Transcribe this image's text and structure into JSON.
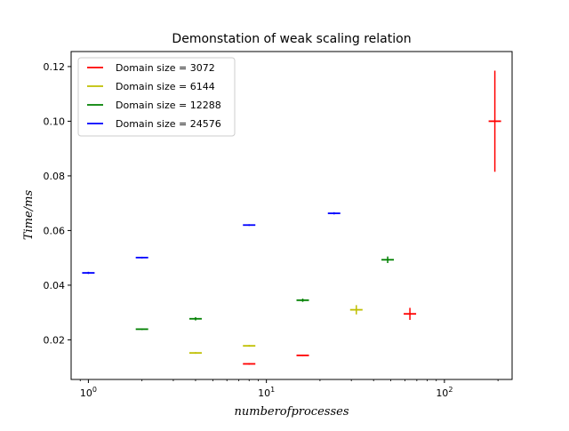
{
  "chart_data": {
    "type": "scatter",
    "title": "Demonstation of weak scaling relation",
    "xlabel": "numberofprocesses",
    "ylabel": "Time/ms",
    "xscale": "log",
    "xlim": [
      0.8,
      240
    ],
    "ylim": [
      0.0055,
      0.1255
    ],
    "x_ticks": [
      {
        "value": 1,
        "base": "10",
        "exp": "0"
      },
      {
        "value": 10,
        "base": "10",
        "exp": "1"
      },
      {
        "value": 100,
        "base": "10",
        "exp": "2"
      }
    ],
    "y_ticks": [
      {
        "value": 0.02,
        "label": "0.02"
      },
      {
        "value": 0.04,
        "label": "0.04"
      },
      {
        "value": 0.06,
        "label": "0.06"
      },
      {
        "value": 0.08,
        "label": "0.08"
      },
      {
        "value": 0.1,
        "label": "0.10"
      },
      {
        "value": 0.12,
        "label": "0.12"
      }
    ],
    "grid": false,
    "legend_position": "top-left",
    "series": [
      {
        "name": "Domain size = 3072",
        "color": "#ff0000",
        "points": [
          {
            "x": 8,
            "y": 0.0112,
            "err": 0.0003
          },
          {
            "x": 16,
            "y": 0.0143,
            "err": 0.0003
          },
          {
            "x": 64,
            "y": 0.0295,
            "err": 0.0022
          },
          {
            "x": 192,
            "y": 0.1,
            "err": 0.0185
          }
        ]
      },
      {
        "name": "Domain size = 6144",
        "color": "#bfbf00",
        "points": [
          {
            "x": 4,
            "y": 0.0152,
            "err": 0.0003
          },
          {
            "x": 8,
            "y": 0.0178,
            "err": 0.0003
          },
          {
            "x": 32,
            "y": 0.031,
            "err": 0.0017
          }
        ]
      },
      {
        "name": "Domain size = 12288",
        "color": "#008000",
        "points": [
          {
            "x": 2,
            "y": 0.0239,
            "err": 0.0003
          },
          {
            "x": 4,
            "y": 0.0277,
            "err": 0.0006
          },
          {
            "x": 16,
            "y": 0.0345,
            "err": 0.0006
          },
          {
            "x": 48,
            "y": 0.0493,
            "err": 0.0012
          }
        ]
      },
      {
        "name": "Domain size = 24576",
        "color": "#0000ff",
        "points": [
          {
            "x": 1,
            "y": 0.0445,
            "err": 0.0004
          },
          {
            "x": 2,
            "y": 0.0501,
            "err": 0.0003
          },
          {
            "x": 8,
            "y": 0.062,
            "err": 0.0003
          },
          {
            "x": 24,
            "y": 0.0663,
            "err": 0.0004
          }
        ]
      }
    ]
  }
}
